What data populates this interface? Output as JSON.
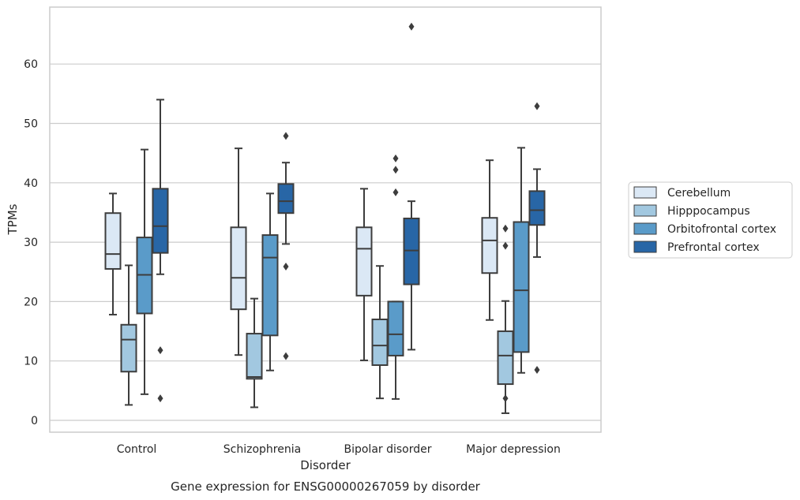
{
  "chart_data": {
    "type": "box",
    "caption": "Gene expression for ENSG00000267059 by disorder",
    "xlabel": "Disorder",
    "ylabel": "TPMs",
    "ylim": [
      -2,
      69.5
    ],
    "yticks": [
      0,
      10,
      20,
      30,
      40,
      50,
      60
    ],
    "grid": "horizontal",
    "legend_position": "right",
    "categories": [
      "Control",
      "Schizophrenia",
      "Bipolar disorder",
      "Major depression"
    ],
    "series": [
      {
        "name": "Cerebellum",
        "color": "#dbe8f5",
        "boxes": [
          {
            "whisker_low": 17.8,
            "q1": 25.5,
            "median": 28.0,
            "q3": 34.9,
            "whisker_high": 38.2,
            "outliers": []
          },
          {
            "whisker_low": 11.0,
            "q1": 18.7,
            "median": 24.0,
            "q3": 32.5,
            "whisker_high": 45.8,
            "outliers": []
          },
          {
            "whisker_low": 10.1,
            "q1": 21.0,
            "median": 28.9,
            "q3": 32.5,
            "whisker_high": 39.0,
            "outliers": []
          },
          {
            "whisker_low": 16.9,
            "q1": 24.8,
            "median": 30.3,
            "q3": 34.1,
            "whisker_high": 43.8,
            "outliers": []
          }
        ]
      },
      {
        "name": "Hipppocampus",
        "color": "#a2c8e0",
        "boxes": [
          {
            "whisker_low": 2.6,
            "q1": 8.2,
            "median": 13.6,
            "q3": 16.1,
            "whisker_high": 26.1,
            "outliers": []
          },
          {
            "whisker_low": 2.2,
            "q1": 7.0,
            "median": 7.3,
            "q3": 14.6,
            "whisker_high": 20.5,
            "outliers": []
          },
          {
            "whisker_low": 3.7,
            "q1": 9.3,
            "median": 12.6,
            "q3": 17.0,
            "whisker_high": 26.0,
            "outliers": []
          },
          {
            "whisker_low": 1.2,
            "q1": 6.1,
            "median": 10.9,
            "q3": 15.0,
            "whisker_high": 20.1,
            "outliers": [
              3.7,
              29.4,
              32.3
            ]
          }
        ]
      },
      {
        "name": "Orbitofrontal cortex",
        "color": "#5a9bc9",
        "boxes": [
          {
            "whisker_low": 4.4,
            "q1": 18.0,
            "median": 24.5,
            "q3": 30.8,
            "whisker_high": 45.6,
            "outliers": []
          },
          {
            "whisker_low": 8.4,
            "q1": 14.3,
            "median": 27.4,
            "q3": 31.2,
            "whisker_high": 38.2,
            "outliers": []
          },
          {
            "whisker_low": 3.6,
            "q1": 10.9,
            "median": 14.5,
            "q3": 20.0,
            "whisker_high": 20.0,
            "outliers": [
              38.4,
              42.2,
              44.1
            ]
          },
          {
            "whisker_low": 8.0,
            "q1": 11.5,
            "median": 21.9,
            "q3": 33.4,
            "whisker_high": 45.9,
            "outliers": []
          }
        ]
      },
      {
        "name": "Prefrontal cortex",
        "color": "#2866a6",
        "boxes": [
          {
            "whisker_low": 24.6,
            "q1": 28.2,
            "median": 32.7,
            "q3": 39.0,
            "whisker_high": 54.0,
            "outliers": [
              11.8,
              3.7
            ]
          },
          {
            "whisker_low": 29.7,
            "q1": 34.9,
            "median": 36.9,
            "q3": 39.8,
            "whisker_high": 43.4,
            "outliers": [
              47.9,
              25.9,
              10.8
            ]
          },
          {
            "whisker_low": 11.9,
            "q1": 22.9,
            "median": 28.6,
            "q3": 34.0,
            "whisker_high": 36.9,
            "outliers": [
              66.3
            ]
          },
          {
            "whisker_low": 27.5,
            "q1": 32.9,
            "median": 35.4,
            "q3": 38.6,
            "whisker_high": 42.3,
            "outliers": [
              52.9,
              8.5
            ]
          }
        ]
      }
    ]
  }
}
